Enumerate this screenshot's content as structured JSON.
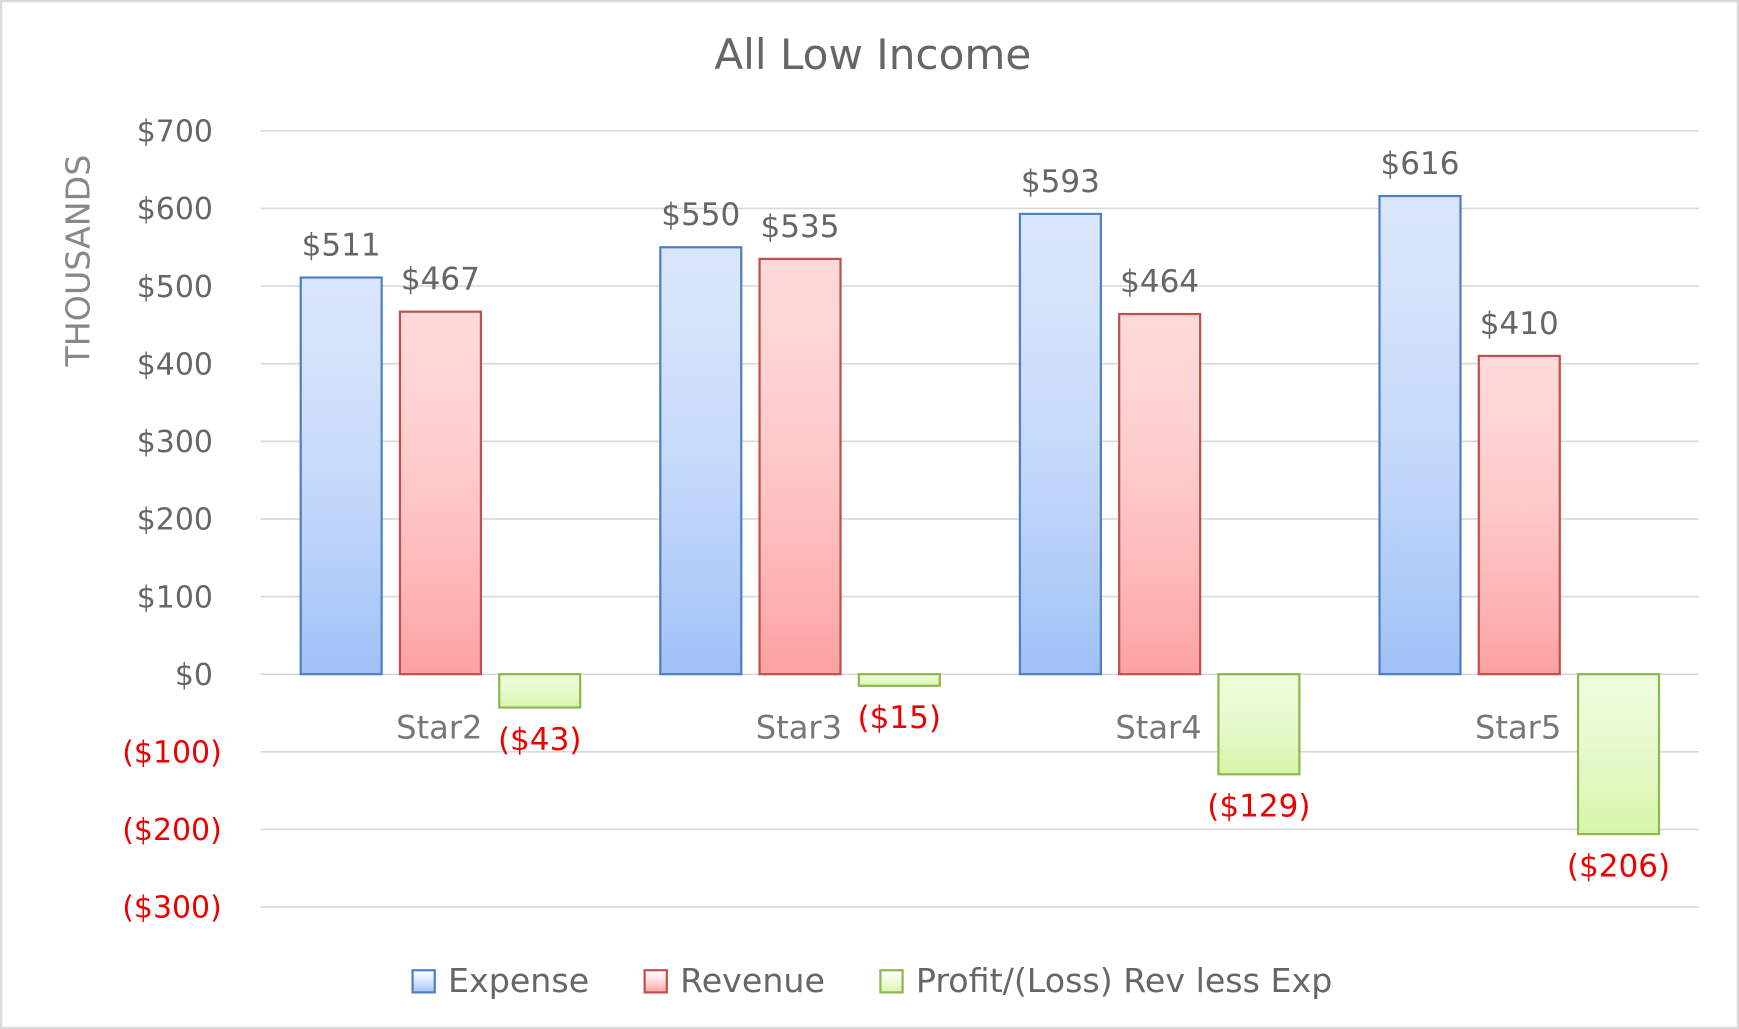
{
  "chart_data": {
    "type": "bar",
    "title": "All Low Income",
    "y_label": "THOUSANDS",
    "categories": [
      "Star2",
      "Star3",
      "Star4",
      "Star5"
    ],
    "series": [
      {
        "name": "Expense",
        "color": "#9fc0f7",
        "edge": "#4f7fc0",
        "values": [
          511,
          550,
          593,
          616
        ],
        "value_labels": [
          "$511",
          "$550",
          "$593",
          "$616"
        ]
      },
      {
        "name": "Revenue",
        "color": "#fda1a1",
        "edge": "#c0504d",
        "values": [
          467,
          535,
          464,
          410
        ],
        "value_labels": [
          "$467",
          "$535",
          "$464",
          "$410"
        ]
      },
      {
        "name": "Profit/(Loss) Rev less Exp",
        "color": "#d6f5a8",
        "edge": "#8cb84e",
        "values": [
          -43,
          -15,
          -129,
          -206
        ],
        "value_labels": [
          "($43)",
          "($15)",
          "($129)",
          "($206)"
        ]
      }
    ],
    "negative_color": "#ee0000",
    "ylim": [
      -300,
      700
    ],
    "yticks": [
      {
        "value": -300,
        "label": "($300)"
      },
      {
        "value": -200,
        "label": "($200)"
      },
      {
        "value": -100,
        "label": "($100)"
      },
      {
        "value": 0,
        "label": "$0"
      },
      {
        "value": 100,
        "label": "$100"
      },
      {
        "value": 200,
        "label": "$200"
      },
      {
        "value": 300,
        "label": "$300"
      },
      {
        "value": 400,
        "label": "$400"
      },
      {
        "value": 500,
        "label": "$500"
      },
      {
        "value": 600,
        "label": "$600"
      },
      {
        "value": 700,
        "label": "$700"
      }
    ],
    "grid": true,
    "legend": "bottom"
  }
}
